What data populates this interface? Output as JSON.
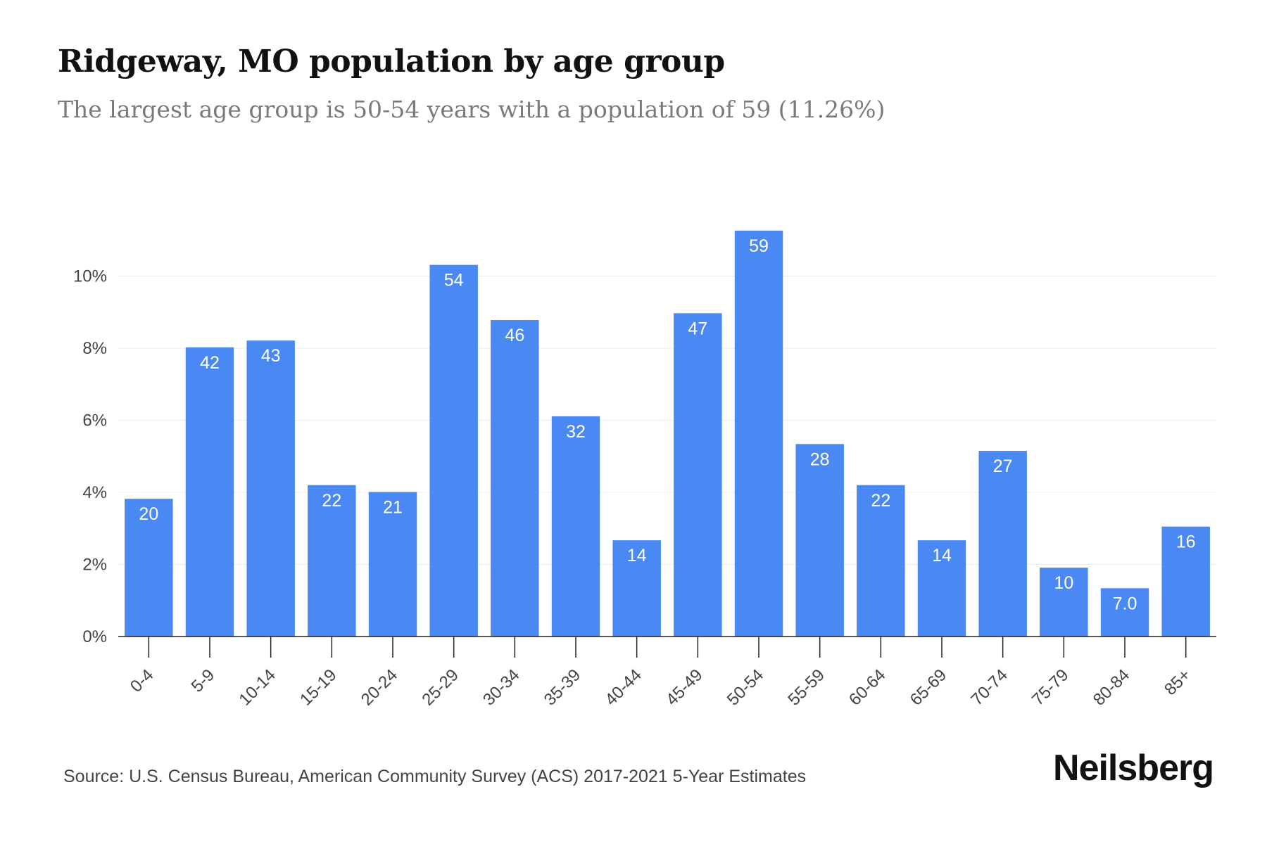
{
  "header": {
    "title": "Ridgeway, MO population by age group",
    "subtitle": "The largest age group is 50-54 years with a population of 59 (11.26%)"
  },
  "footer": {
    "source": "Source: U.S. Census Bureau, American Community Survey (ACS) 2017-2021 5-Year Estimates",
    "logo": "Neilsberg"
  },
  "colors": {
    "bar": "#4a89f3",
    "label": "#ffffff",
    "axis": "#222222",
    "grid": "#ececec",
    "tick_text": "#444444"
  },
  "chart_data": {
    "type": "bar",
    "categories": [
      "0-4",
      "5-9",
      "10-14",
      "15-19",
      "20-24",
      "25-29",
      "30-34",
      "35-39",
      "40-44",
      "45-49",
      "50-54",
      "55-59",
      "60-64",
      "65-69",
      "70-74",
      "75-79",
      "80-84",
      "85+"
    ],
    "values": [
      3.82,
      8.02,
      8.21,
      4.2,
      4.01,
      10.31,
      8.78,
      6.11,
      2.67,
      8.97,
      11.26,
      5.34,
      4.2,
      2.67,
      5.15,
      1.91,
      1.34,
      3.05
    ],
    "data_labels": [
      "20",
      "42",
      "43",
      "22",
      "21",
      "54",
      "46",
      "32",
      "14",
      "47",
      "59",
      "28",
      "22",
      "14",
      "27",
      "10",
      "7.0",
      "16"
    ],
    "ylim": [
      0,
      12
    ],
    "yticks": [
      0,
      2,
      4,
      6,
      8,
      10
    ],
    "ytick_labels": [
      "0%",
      "2%",
      "4%",
      "6%",
      "8%",
      "10%"
    ],
    "grid": true,
    "legend": "none"
  }
}
